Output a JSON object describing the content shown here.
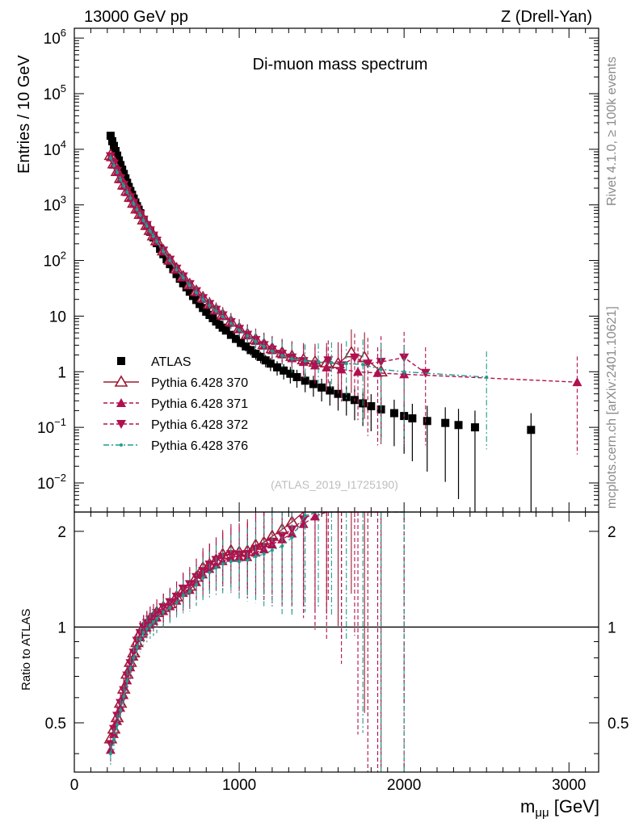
{
  "header": {
    "left": "13000 GeV pp",
    "right": "Z (Drell-Yan)"
  },
  "side": {
    "rivet": "Rivet 4.1.0, ≥ 100k events",
    "mcplots": "mcplots.cern.ch [arXiv:2401.10621]"
  },
  "chart_data": {
    "type": "scatter",
    "title": "Di-muon mass spectrum",
    "watermark": "(ATLAS_2019_I1725190)",
    "xlabel": "mμμ [GeV]",
    "ylabel": "Entries / 10 GeV",
    "ratio_ylabel": "Ratio to ATLAS",
    "xlim": [
      0,
      3180
    ],
    "ylim": [
      0.003,
      1500000
    ],
    "yscale": "log",
    "ratio_ylim": [
      0.35,
      2.3
    ],
    "x_ticks": [
      "0",
      "1000",
      "2000",
      "3000"
    ],
    "y_ticks": [
      "10^-2",
      "10^-1",
      "1",
      "10",
      "10^2",
      "10^3",
      "10^4",
      "10^5",
      "10^6"
    ],
    "ratio_ticks": [
      "0.5",
      "1",
      "2"
    ],
    "legend_position": "left",
    "series": [
      {
        "name": "ATLAS",
        "color": "#000000",
        "marker": "square",
        "x": [
          220,
          230,
          240,
          250,
          260,
          270,
          280,
          290,
          300,
          310,
          320,
          330,
          340,
          350,
          360,
          370,
          380,
          390,
          400,
          420,
          440,
          460,
          480,
          500,
          520,
          540,
          560,
          580,
          600,
          620,
          640,
          660,
          680,
          700,
          720,
          740,
          760,
          780,
          800,
          820,
          840,
          860,
          880,
          900,
          920,
          950,
          980,
          1010,
          1040,
          1070,
          1100,
          1130,
          1160,
          1190,
          1230,
          1270,
          1310,
          1350,
          1400,
          1450,
          1500,
          1550,
          1600,
          1650,
          1700,
          1750,
          1800,
          1860,
          1940,
          2000,
          2050,
          2140,
          2250,
          2330,
          2430,
          2770
        ],
        "y": [
          17500,
          14000,
          11500,
          9300,
          7700,
          6300,
          5200,
          4300,
          3600,
          3000,
          2500,
          2100,
          1780,
          1520,
          1300,
          1110,
          950,
          820,
          710,
          540,
          420,
          330,
          260,
          205,
          162,
          130,
          105,
          86,
          70,
          57,
          47,
          39,
          33,
          27.5,
          23,
          19.5,
          16.5,
          14,
          12,
          10.5,
          9.2,
          8,
          7,
          6.2,
          5.5,
          4.6,
          3.9,
          3.3,
          2.85,
          2.45,
          2.1,
          1.85,
          1.6,
          1.4,
          1.2,
          1.05,
          0.92,
          0.8,
          0.69,
          0.6,
          0.52,
          0.46,
          0.4,
          0.35,
          0.31,
          0.27,
          0.24,
          0.21,
          0.18,
          0.16,
          0.145,
          0.13,
          0.12,
          0.11,
          0.1,
          0.09
        ]
      },
      {
        "name": "Pythia 6.428 370",
        "color": "#9b1b30",
        "marker": "triangle-up-open",
        "line": "solid",
        "x": [
          220,
          240,
          260,
          280,
          300,
          320,
          340,
          360,
          380,
          400,
          420,
          440,
          460,
          480,
          500,
          540,
          580,
          620,
          660,
          700,
          740,
          780,
          820,
          860,
          900,
          950,
          1000,
          1050,
          1100,
          1150,
          1200,
          1260,
          1320,
          1390,
          1460,
          1530,
          1600,
          1680,
          1760,
          1860
        ],
        "y": [
          7800,
          5500,
          4000,
          3000,
          2300,
          1780,
          1380,
          1080,
          850,
          680,
          540,
          430,
          350,
          280,
          228,
          150,
          102,
          71,
          51,
          37,
          28,
          21.5,
          16.5,
          13,
          10.5,
          8,
          6,
          4.7,
          3.8,
          3.1,
          2.6,
          2.2,
          1.9,
          1.65,
          1.5,
          1.45,
          1.4,
          2.2,
          1.8,
          1.0
        ]
      },
      {
        "name": "Pythia 6.428 371",
        "color": "#b0104f",
        "marker": "triangle-up",
        "line": "dashed",
        "x": [
          220,
          240,
          260,
          280,
          300,
          320,
          340,
          360,
          380,
          400,
          420,
          440,
          460,
          480,
          500,
          540,
          580,
          620,
          660,
          700,
          740,
          780,
          820,
          860,
          900,
          950,
          1000,
          1050,
          1100,
          1150,
          1200,
          1260,
          1320,
          1390,
          1460,
          1530,
          1620,
          1720,
          1840,
          2000,
          3050
        ],
        "y": [
          7200,
          5300,
          3900,
          2900,
          2200,
          1700,
          1330,
          1050,
          830,
          660,
          525,
          420,
          340,
          272,
          220,
          146,
          100,
          69,
          50,
          36,
          27,
          20.5,
          16,
          12.6,
          10,
          7.6,
          5.8,
          4.5,
          3.6,
          2.95,
          2.45,
          2.05,
          1.75,
          1.5,
          1.3,
          1.2,
          1.1,
          1.0,
          0.95,
          0.9,
          0.65
        ]
      },
      {
        "name": "Pythia 6.428 372",
        "color": "#b0104f",
        "marker": "triangle-down",
        "line": "dashed",
        "x": [
          220,
          240,
          260,
          280,
          300,
          320,
          340,
          360,
          380,
          400,
          420,
          440,
          460,
          480,
          500,
          540,
          580,
          620,
          660,
          700,
          740,
          780,
          820,
          860,
          900,
          950,
          1000,
          1050,
          1100,
          1150,
          1200,
          1260,
          1320,
          1390,
          1460,
          1540,
          1620,
          1700,
          1780,
          1860,
          2000,
          2130
        ],
        "y": [
          7500,
          5500,
          4050,
          3000,
          2280,
          1760,
          1370,
          1080,
          860,
          680,
          540,
          432,
          348,
          280,
          227,
          150,
          103,
          71,
          51.5,
          37.5,
          28,
          21,
          16.5,
          13,
          10.3,
          7.8,
          5.9,
          4.6,
          3.7,
          3.0,
          2.5,
          2.1,
          1.8,
          1.55,
          1.35,
          1.6,
          1.3,
          1.8,
          1.4,
          1.5,
          1.8,
          0.95
        ]
      },
      {
        "name": "Pythia 6.428 376",
        "color": "#1f9e8f",
        "marker": "dot",
        "line": "dashdot",
        "x": [
          220,
          240,
          260,
          280,
          300,
          320,
          340,
          360,
          380,
          400,
          420,
          440,
          460,
          480,
          500,
          540,
          580,
          620,
          660,
          700,
          740,
          780,
          820,
          860,
          900,
          950,
          1000,
          1050,
          1100,
          1150,
          1200,
          1260,
          1320,
          1400,
          1480,
          1560,
          1650,
          1750,
          1860,
          2000,
          2500
        ],
        "y": [
          7000,
          5100,
          3800,
          2850,
          2180,
          1690,
          1320,
          1040,
          820,
          650,
          520,
          415,
          335,
          270,
          218,
          145,
          99,
          68,
          49,
          35.5,
          26.5,
          20,
          15.6,
          12.3,
          9.8,
          7.4,
          5.6,
          4.4,
          3.5,
          2.85,
          2.35,
          1.95,
          1.7,
          1.55,
          1.5,
          1.45,
          1.4,
          1.35,
          1.1,
          1.0,
          0.8
        ]
      }
    ]
  }
}
